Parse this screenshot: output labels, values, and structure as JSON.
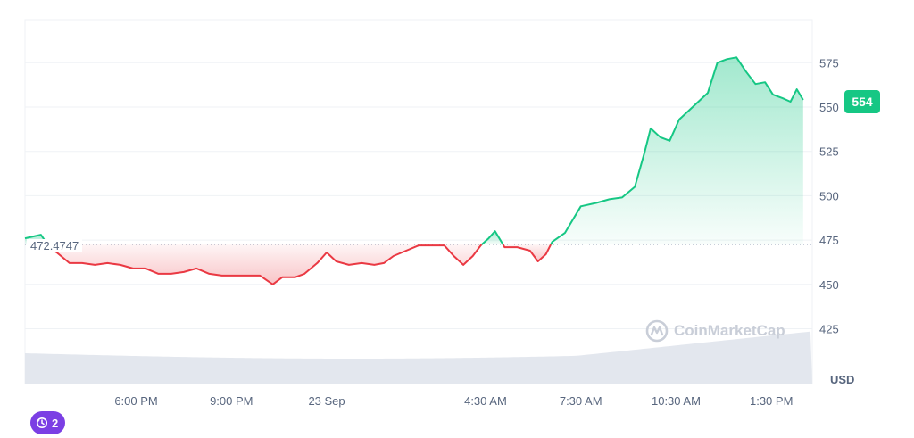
{
  "colors": {
    "up": "#16c784",
    "down": "#ea3943",
    "grid": "#eff2f5",
    "axis_text": "#58667e",
    "volume": "#e3e7ee",
    "badge_accent": "#7b3fe4"
  },
  "chart_data": {
    "type": "area",
    "baseline": 472.4747,
    "baseline_label": "472.4747",
    "y_range": [
      400,
      600
    ],
    "y_ticks": [
      425,
      450,
      475,
      500,
      525,
      550,
      575
    ],
    "y_unit": "USD",
    "x_range_hours": [
      0,
      24
    ],
    "x_ticks": [
      {
        "label": "6:00 PM",
        "t": 3.5
      },
      {
        "label": "9:00 PM",
        "t": 6.5
      },
      {
        "label": "23 Sep",
        "t": 9.5
      },
      {
        "label": "4:30 AM",
        "t": 14.5
      },
      {
        "label": "7:30 AM",
        "t": 17.5
      },
      {
        "label": "10:30 AM",
        "t": 20.5
      },
      {
        "label": "1:30 PM",
        "t": 23.5
      }
    ],
    "grid": true,
    "last_price_label": "554",
    "points": [
      {
        "t": 0.0,
        "v": 476
      },
      {
        "t": 0.5,
        "v": 478
      },
      {
        "t": 0.8,
        "v": 470
      },
      {
        "t": 1.0,
        "v": 468
      },
      {
        "t": 1.4,
        "v": 462
      },
      {
        "t": 1.8,
        "v": 462
      },
      {
        "t": 2.2,
        "v": 461
      },
      {
        "t": 2.6,
        "v": 462
      },
      {
        "t": 3.0,
        "v": 461
      },
      {
        "t": 3.4,
        "v": 459
      },
      {
        "t": 3.8,
        "v": 459
      },
      {
        "t": 4.2,
        "v": 456
      },
      {
        "t": 4.6,
        "v": 456
      },
      {
        "t": 5.0,
        "v": 457
      },
      {
        "t": 5.4,
        "v": 459
      },
      {
        "t": 5.8,
        "v": 456
      },
      {
        "t": 6.2,
        "v": 455
      },
      {
        "t": 6.6,
        "v": 455
      },
      {
        "t": 7.0,
        "v": 455
      },
      {
        "t": 7.4,
        "v": 455
      },
      {
        "t": 7.8,
        "v": 450
      },
      {
        "t": 8.1,
        "v": 454
      },
      {
        "t": 8.5,
        "v": 454
      },
      {
        "t": 8.8,
        "v": 456
      },
      {
        "t": 9.2,
        "v": 462
      },
      {
        "t": 9.5,
        "v": 468
      },
      {
        "t": 9.8,
        "v": 463
      },
      {
        "t": 10.2,
        "v": 461
      },
      {
        "t": 10.6,
        "v": 462
      },
      {
        "t": 11.0,
        "v": 461
      },
      {
        "t": 11.3,
        "v": 462
      },
      {
        "t": 11.6,
        "v": 466
      },
      {
        "t": 12.0,
        "v": 469
      },
      {
        "t": 12.4,
        "v": 472
      },
      {
        "t": 12.8,
        "v": 472
      },
      {
        "t": 13.2,
        "v": 472
      },
      {
        "t": 13.5,
        "v": 466
      },
      {
        "t": 13.8,
        "v": 461
      },
      {
        "t": 14.1,
        "v": 466
      },
      {
        "t": 14.35,
        "v": 472
      },
      {
        "t": 14.6,
        "v": 476
      },
      {
        "t": 14.8,
        "v": 480
      },
      {
        "t": 15.1,
        "v": 471
      },
      {
        "t": 15.5,
        "v": 471
      },
      {
        "t": 15.9,
        "v": 469
      },
      {
        "t": 16.15,
        "v": 463
      },
      {
        "t": 16.4,
        "v": 467
      },
      {
        "t": 16.6,
        "v": 474
      },
      {
        "t": 17.0,
        "v": 479
      },
      {
        "t": 17.5,
        "v": 494
      },
      {
        "t": 18.0,
        "v": 496
      },
      {
        "t": 18.4,
        "v": 498
      },
      {
        "t": 18.8,
        "v": 499
      },
      {
        "t": 19.2,
        "v": 505
      },
      {
        "t": 19.5,
        "v": 524
      },
      {
        "t": 19.7,
        "v": 538
      },
      {
        "t": 20.0,
        "v": 533
      },
      {
        "t": 20.3,
        "v": 531
      },
      {
        "t": 20.6,
        "v": 543
      },
      {
        "t": 20.9,
        "v": 548
      },
      {
        "t": 21.2,
        "v": 553
      },
      {
        "t": 21.5,
        "v": 558
      },
      {
        "t": 21.8,
        "v": 575
      },
      {
        "t": 22.1,
        "v": 577
      },
      {
        "t": 22.4,
        "v": 578
      },
      {
        "t": 22.7,
        "v": 570
      },
      {
        "t": 23.0,
        "v": 563
      },
      {
        "t": 23.3,
        "v": 564
      },
      {
        "t": 23.55,
        "v": 557
      },
      {
        "t": 23.85,
        "v": 555
      },
      {
        "t": 24.1,
        "v": 553
      },
      {
        "t": 24.3,
        "v": 560
      },
      {
        "t": 24.5,
        "v": 554
      }
    ]
  },
  "watermark": "CoinMarketCap",
  "history_badge": {
    "icon": "history-icon",
    "count": "2"
  }
}
